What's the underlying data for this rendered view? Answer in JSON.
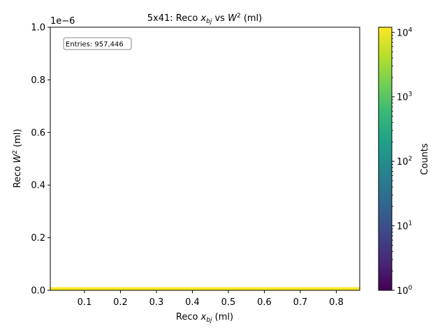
{
  "chart_data": {
    "type": "heatmap",
    "title_prefix": "5x41: Reco ",
    "title_var": "x",
    "title_var_sub": "bj",
    "title_mid": " vs ",
    "title_var2": "W",
    "title_var2_sup": "2",
    "title_suffix": " (ml)",
    "xlabel_prefix": "Reco ",
    "xlabel_var": "x",
    "xlabel_sub": "bj",
    "xlabel_suffix": " (ml)",
    "ylabel_prefix": "Reco ",
    "ylabel_var": "W",
    "ylabel_sup": "2",
    "ylabel_suffix": " (ml)",
    "xlim": [
      0.005,
      0.865
    ],
    "ylim": [
      0.0,
      1.0
    ],
    "y_offset_text": "1e−6",
    "x_ticks": [
      0.1,
      0.2,
      0.3,
      0.4,
      0.5,
      0.6,
      0.7,
      0.8
    ],
    "x_tick_labels": [
      "0.1",
      "0.2",
      "0.3",
      "0.4",
      "0.5",
      "0.6",
      "0.7",
      "0.8"
    ],
    "y_ticks": [
      0.0,
      0.2,
      0.4,
      0.6,
      0.8,
      1.0
    ],
    "y_tick_labels": [
      "0.0",
      "0.2",
      "0.4",
      "0.6",
      "0.8",
      "1.0"
    ],
    "entries_label": "Entries: 957,446",
    "band": {
      "y_min": 0.0,
      "y_max": 0.012,
      "value": 10000
    },
    "colorbar": {
      "label": "Counts",
      "scale": "log",
      "min": 1,
      "max": 12000,
      "ticks": [
        1,
        10,
        100,
        1000,
        10000
      ],
      "tick_base": "10",
      "tick_exponents": [
        "0",
        "1",
        "2",
        "3",
        "4"
      ],
      "colormap": "viridis",
      "colors": [
        "#440154",
        "#482878",
        "#3e4989",
        "#31688e",
        "#26828e",
        "#1f9e89",
        "#35b779",
        "#6ece58",
        "#b5de2b",
        "#fde725"
      ]
    }
  }
}
